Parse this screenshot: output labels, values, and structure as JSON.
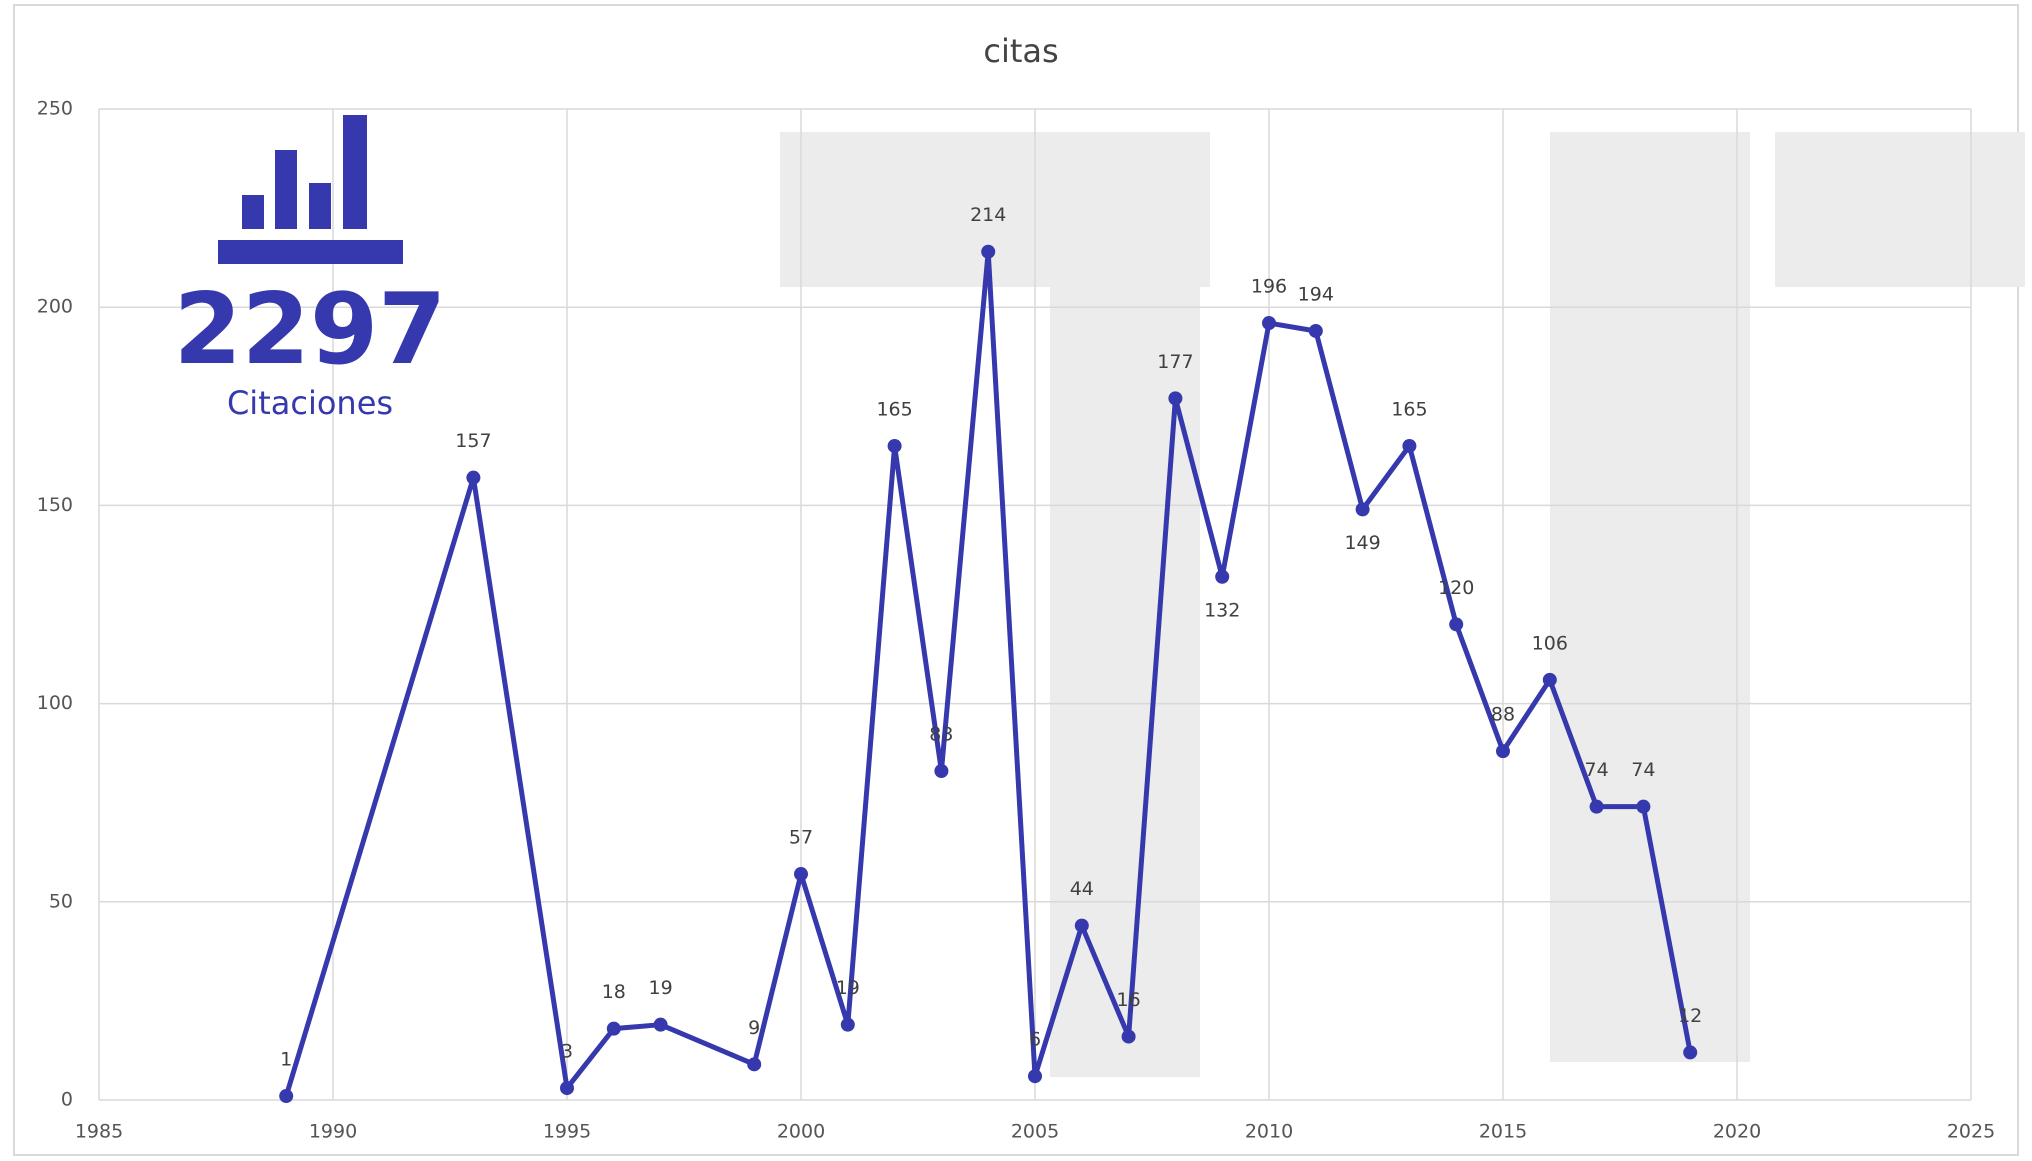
{
  "chart_data": {
    "type": "line",
    "title": "citas",
    "x": [
      1989,
      1993,
      1995,
      1996,
      1997,
      1999,
      2000,
      2001,
      2002,
      2003,
      2004,
      2005,
      2006,
      2007,
      2008,
      2009,
      2010,
      2011,
      2012,
      2013,
      2014,
      2015,
      2016,
      2017,
      2018,
      2019
    ],
    "series": [
      {
        "name": "citas",
        "color": "#3539ad",
        "values": [
          1,
          157,
          3,
          18,
          19,
          9,
          57,
          19,
          165,
          83,
          214,
          6,
          44,
          16,
          177,
          132,
          196,
          194,
          149,
          165,
          120,
          88,
          106,
          74,
          74,
          12
        ]
      }
    ],
    "xlim": [
      1985,
      2025
    ],
    "xticks": [
      1985,
      1990,
      1995,
      2000,
      2005,
      2010,
      2015,
      2020,
      2025
    ],
    "ylim": [
      0,
      250
    ],
    "yticks": [
      0,
      50,
      100,
      150,
      200,
      250
    ],
    "grid": true,
    "total": 2297,
    "total_label": "Citaciones"
  }
}
